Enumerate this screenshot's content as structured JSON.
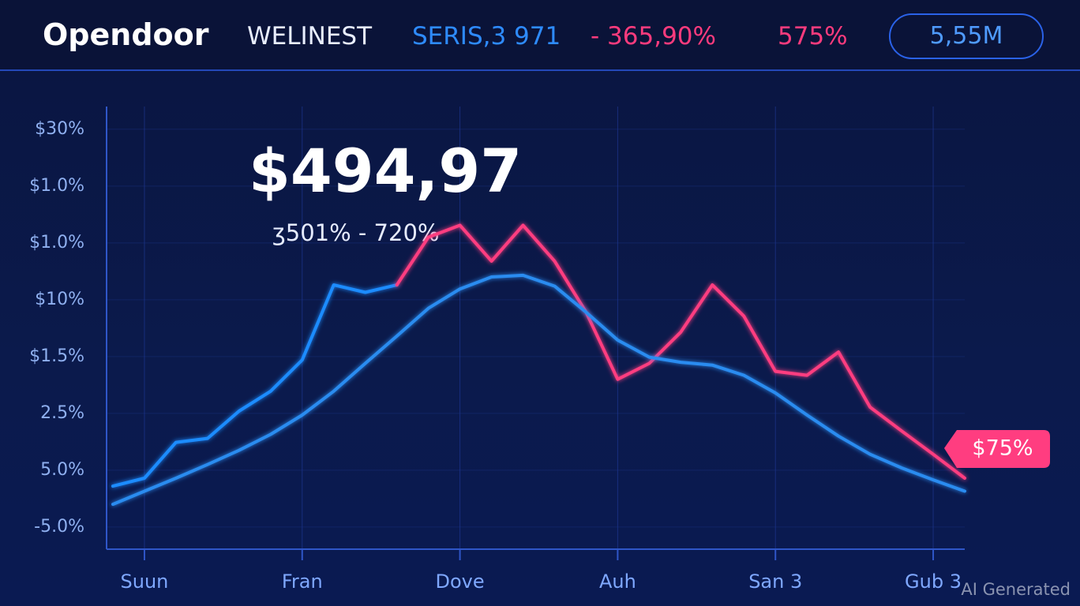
{
  "header": {
    "logo": "Opendoor",
    "ticker": "WELINEST",
    "series": "SERIS,3 971",
    "change": "- 365,90%",
    "percent": "575%",
    "button": "5,55M"
  },
  "chart_data": {
    "type": "line",
    "price": "$494,97",
    "range": "ʒ501% - 720%",
    "badge": "$75%",
    "xticks": [
      {
        "value": 0,
        "label": "Suun"
      },
      {
        "value": 1,
        "label": "Fran"
      },
      {
        "value": 2,
        "label": "Dove"
      },
      {
        "value": 3,
        "label": "Auh"
      },
      {
        "value": 4,
        "label": "San 3"
      },
      {
        "value": 5,
        "label": "Gub 3"
      }
    ],
    "xlim": [
      -0.24,
      5.2
    ],
    "yticks": [
      {
        "value": 7,
        "label": "$30%"
      },
      {
        "value": 6,
        "label": "$1.0%"
      },
      {
        "value": 5,
        "label": "$1.0%"
      },
      {
        "value": 4,
        "label": "$10%"
      },
      {
        "value": 3,
        "label": "$1.5%"
      },
      {
        "value": 2,
        "label": "2.5%"
      },
      {
        "value": 1,
        "label": "5.0%"
      },
      {
        "value": 0,
        "label": "-5.0%"
      }
    ],
    "ylim": [
      -0.39,
      7.4
    ],
    "grid": true,
    "x": [
      -0.2,
      0,
      0.2,
      0.4,
      0.6,
      0.8,
      1.0,
      1.2,
      1.4,
      1.6,
      1.8,
      2.0,
      2.2,
      2.4,
      2.6,
      2.8,
      3.0,
      3.2,
      3.4,
      3.6,
      3.8,
      4.0,
      4.2,
      4.4,
      4.6,
      4.8,
      5.0,
      5.2
    ],
    "series": [
      {
        "color": "#1e8cff",
        "values": [
          0.72,
          0.86,
          1.49,
          1.56,
          2.04,
          2.39,
          2.94,
          4.26,
          4.13,
          4.26,
          null,
          null,
          null,
          null,
          null,
          null,
          null,
          null,
          null,
          null,
          null,
          null,
          null,
          null,
          null,
          null,
          null,
          null
        ]
      },
      {
        "color": "#ff3d80",
        "values": [
          null,
          null,
          null,
          null,
          null,
          null,
          null,
          null,
          null,
          4.26,
          5.1,
          5.31,
          4.68,
          5.31,
          4.68,
          3.78,
          2.6,
          2.88,
          3.43,
          4.26,
          3.71,
          2.74,
          2.67,
          3.08,
          2.11,
          1.69,
          1.28,
          0.86
        ]
      },
      {
        "color": "#2a8cf0",
        "values": [
          0.4,
          0.63,
          0.86,
          1.1,
          1.35,
          1.63,
          1.97,
          2.39,
          2.88,
          3.36,
          3.85,
          4.19,
          4.4,
          4.43,
          4.24,
          3.78,
          3.29,
          2.99,
          2.9,
          2.85,
          2.67,
          2.36,
          1.97,
          1.6,
          1.28,
          1.04,
          0.83,
          0.63
        ]
      }
    ],
    "watermark": "AI Generated"
  }
}
